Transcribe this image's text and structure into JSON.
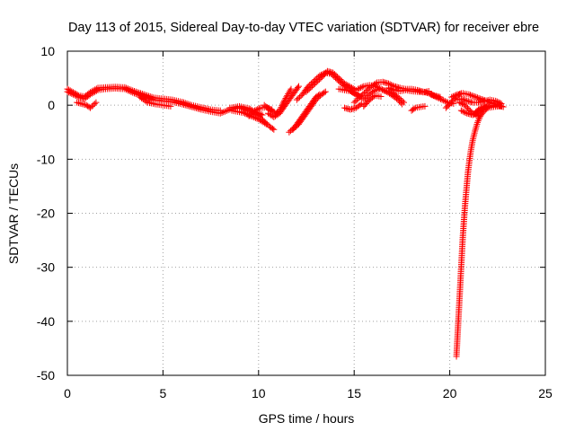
{
  "chart_data": {
    "type": "scatter",
    "title": "Day 113 of 2015, Sidereal Day-to-day VTEC variation (SDTVAR) for receiver ebre",
    "xlabel": "GPS time / hours",
    "ylabel": "SDTVAR / TECUs",
    "xlim": [
      0,
      25
    ],
    "ylim": [
      -50,
      10
    ],
    "xticks": [
      0,
      5,
      10,
      15,
      20,
      25
    ],
    "yticks": [
      -50,
      -40,
      -30,
      -20,
      -10,
      0,
      10
    ],
    "grid": true,
    "marker": "+",
    "color": "#ff0000",
    "series": [
      {
        "name": "SDTVAR",
        "segments": [
          [
            [
              0.0,
              2.5
            ],
            [
              0.3,
              2.0
            ],
            [
              0.6,
              1.5
            ],
            [
              0.9,
              1.2
            ],
            [
              1.2,
              2.0
            ],
            [
              1.6,
              2.8
            ],
            [
              2.0,
              3.0
            ],
            [
              2.5,
              3.1
            ],
            [
              3.0,
              3.0
            ],
            [
              3.5,
              2.2
            ],
            [
              4.0,
              1.6
            ],
            [
              4.5,
              1.0
            ],
            [
              5.0,
              0.8
            ],
            [
              5.5,
              0.6
            ],
            [
              6.0,
              0.2
            ],
            [
              6.5,
              -0.3
            ],
            [
              7.0,
              -0.8
            ],
            [
              7.5,
              -1.2
            ],
            [
              8.0,
              -1.5
            ],
            [
              8.5,
              -0.8
            ],
            [
              9.0,
              -0.5
            ],
            [
              9.5,
              -1.0
            ],
            [
              10.0,
              -2.0
            ],
            [
              10.3,
              -3.0
            ],
            [
              10.6,
              -4.0
            ],
            [
              10.8,
              -4.5
            ]
          ],
          [
            [
              0.0,
              3.0
            ],
            [
              0.3,
              2.4
            ],
            [
              0.6,
              1.8
            ],
            [
              0.9,
              1.6
            ],
            [
              1.2,
              2.4
            ],
            [
              1.6,
              3.2
            ],
            [
              2.0,
              3.3
            ],
            [
              2.5,
              3.4
            ],
            [
              3.0,
              3.3
            ],
            [
              3.5,
              2.6
            ],
            [
              4.0,
              2.0
            ],
            [
              4.5,
              1.4
            ],
            [
              5.0,
              1.2
            ],
            [
              5.5,
              1.0
            ],
            [
              6.0,
              0.6
            ],
            [
              6.5,
              0.0
            ],
            [
              7.0,
              -0.4
            ],
            [
              7.5,
              -0.8
            ],
            [
              8.0,
              -1.0
            ]
          ],
          [
            [
              0.5,
              0.5
            ],
            [
              1.0,
              0.0
            ],
            [
              1.2,
              -0.5
            ],
            [
              1.5,
              0.5
            ]
          ],
          [
            [
              3.8,
              1.5
            ],
            [
              4.2,
              0.5
            ],
            [
              4.6,
              0.2
            ],
            [
              5.0,
              0.0
            ],
            [
              5.4,
              -0.2
            ]
          ],
          [
            [
              8.5,
              -0.5
            ],
            [
              9.0,
              -0.2
            ],
            [
              9.5,
              -0.6
            ],
            [
              9.8,
              -1.2
            ],
            [
              10.2,
              -1.8
            ]
          ],
          [
            [
              8.6,
              -1.0
            ],
            [
              9.2,
              -1.4
            ],
            [
              9.6,
              -2.0
            ],
            [
              10.0,
              -2.6
            ],
            [
              10.4,
              -3.5
            ]
          ],
          [
            [
              9.5,
              -2.0
            ],
            [
              9.8,
              -1.0
            ],
            [
              10.1,
              -0.5
            ],
            [
              10.4,
              -0.4
            ],
            [
              10.7,
              -0.8
            ]
          ],
          [
            [
              10.3,
              0.0
            ],
            [
              10.6,
              -0.8
            ],
            [
              10.9,
              -1.5
            ],
            [
              11.1,
              -1.0
            ],
            [
              11.3,
              0.5
            ],
            [
              11.5,
              1.8
            ],
            [
              11.7,
              3.0
            ]
          ],
          [
            [
              10.5,
              -1.5
            ],
            [
              10.8,
              -2.2
            ],
            [
              11.1,
              -1.5
            ],
            [
              11.4,
              0.0
            ],
            [
              11.7,
              1.5
            ],
            [
              11.9,
              2.5
            ],
            [
              12.1,
              3.5
            ]
          ],
          [
            [
              11.6,
              -5.0
            ],
            [
              11.9,
              -4.0
            ],
            [
              12.2,
              -2.5
            ],
            [
              12.5,
              -1.0
            ],
            [
              12.8,
              0.5
            ],
            [
              13.0,
              1.5
            ],
            [
              13.2,
              2.0
            ]
          ],
          [
            [
              11.8,
              -4.5
            ],
            [
              12.1,
              -3.5
            ],
            [
              12.4,
              -2.0
            ],
            [
              12.7,
              -0.5
            ],
            [
              13.0,
              1.0
            ],
            [
              13.3,
              2.0
            ],
            [
              13.5,
              2.5
            ]
          ],
          [
            [
              12.0,
              1.0
            ],
            [
              12.3,
              2.0
            ],
            [
              12.6,
              3.5
            ],
            [
              12.9,
              4.5
            ],
            [
              13.2,
              5.5
            ],
            [
              13.5,
              6.0
            ],
            [
              13.8,
              5.8
            ],
            [
              14.1,
              4.8
            ],
            [
              14.4,
              3.8
            ],
            [
              14.7,
              3.0
            ],
            [
              15.0,
              2.2
            ],
            [
              15.3,
              1.6
            ]
          ],
          [
            [
              12.5,
              2.5
            ],
            [
              12.8,
              3.5
            ],
            [
              13.1,
              4.5
            ],
            [
              13.4,
              5.5
            ],
            [
              13.6,
              6.3
            ],
            [
              13.9,
              6.0
            ],
            [
              14.2,
              5.0
            ],
            [
              14.5,
              4.0
            ],
            [
              14.8,
              3.4
            ],
            [
              15.1,
              2.8
            ]
          ],
          [
            [
              14.2,
              3.0
            ],
            [
              14.5,
              2.8
            ],
            [
              14.8,
              2.6
            ],
            [
              15.1,
              2.0
            ],
            [
              15.4,
              1.5
            ]
          ],
          [
            [
              14.5,
              -0.5
            ],
            [
              14.8,
              -0.8
            ],
            [
              15.1,
              -0.5
            ],
            [
              15.4,
              0.3
            ]
          ],
          [
            [
              15.0,
              0.5
            ],
            [
              15.3,
              1.5
            ],
            [
              15.6,
              2.5
            ],
            [
              15.9,
              3.5
            ],
            [
              16.2,
              4.2
            ],
            [
              16.5,
              4.3
            ],
            [
              16.8,
              4.0
            ],
            [
              17.1,
              3.5
            ],
            [
              17.4,
              3.2
            ],
            [
              17.7,
              3.0
            ],
            [
              18.0,
              3.0
            ],
            [
              18.3,
              2.8
            ],
            [
              18.6,
              2.5
            ],
            [
              18.9,
              2.2
            ],
            [
              19.2,
              1.8
            ],
            [
              19.5,
              1.5
            ]
          ],
          [
            [
              15.2,
              3.0
            ],
            [
              15.5,
              3.5
            ],
            [
              15.8,
              3.7
            ],
            [
              16.1,
              3.5
            ],
            [
              16.4,
              3.0
            ],
            [
              16.7,
              2.5
            ],
            [
              17.0,
              2.2
            ],
            [
              17.3,
              1.5
            ],
            [
              17.6,
              0.5
            ]
          ],
          [
            [
              15.5,
              1.0
            ],
            [
              15.8,
              2.0
            ],
            [
              16.1,
              2.8
            ],
            [
              16.4,
              3.0
            ],
            [
              16.7,
              2.5
            ],
            [
              17.0,
              1.8
            ],
            [
              17.3,
              1.0
            ],
            [
              17.5,
              0.2
            ]
          ],
          [
            [
              15.5,
              -0.2
            ],
            [
              15.8,
              1.0
            ],
            [
              16.1,
              1.8
            ],
            [
              16.4,
              1.6
            ]
          ],
          [
            [
              16.8,
              3.2
            ],
            [
              17.1,
              2.8
            ],
            [
              17.4,
              2.6
            ],
            [
              17.7,
              2.8
            ],
            [
              18.0,
              2.6
            ],
            [
              18.3,
              2.5
            ],
            [
              18.6,
              2.4
            ],
            [
              18.9,
              2.6
            ]
          ],
          [
            [
              18.0,
              -1.0
            ],
            [
              18.2,
              -0.5
            ],
            [
              18.5,
              -0.3
            ],
            [
              18.7,
              -0.2
            ]
          ],
          [
            [
              19.0,
              2.0
            ],
            [
              19.3,
              1.5
            ],
            [
              19.6,
              1.0
            ],
            [
              19.9,
              0.5
            ],
            [
              20.2,
              0.3
            ]
          ],
          [
            [
              19.8,
              -0.5
            ],
            [
              20.0,
              0.2
            ],
            [
              20.2,
              1.0
            ],
            [
              20.4,
              1.8
            ],
            [
              20.6,
              2.2
            ]
          ],
          [
            [
              20.1,
              1.5
            ],
            [
              20.4,
              2.0
            ],
            [
              20.7,
              2.2
            ],
            [
              21.0,
              2.0
            ],
            [
              21.3,
              1.6
            ],
            [
              21.6,
              1.2
            ],
            [
              21.9,
              0.8
            ],
            [
              22.2,
              0.4
            ],
            [
              22.5,
              0.0
            ],
            [
              22.8,
              -0.3
            ]
          ],
          [
            [
              20.3,
              1.0
            ],
            [
              20.6,
              1.2
            ],
            [
              20.9,
              0.8
            ],
            [
              21.2,
              0.5
            ],
            [
              21.5,
              0.5
            ],
            [
              21.8,
              0.8
            ],
            [
              22.1,
              1.0
            ],
            [
              22.4,
              0.8
            ],
            [
              22.7,
              0.3
            ]
          ],
          [
            [
              20.5,
              0.5
            ],
            [
              20.8,
              0.0
            ],
            [
              21.0,
              -0.8
            ],
            [
              21.2,
              -1.5
            ],
            [
              21.5,
              -2.0
            ]
          ],
          [
            [
              20.6,
              -1.0
            ],
            [
              20.9,
              -1.5
            ],
            [
              21.2,
              -1.8
            ],
            [
              21.4,
              -1.5
            ],
            [
              21.6,
              -1.0
            ],
            [
              21.8,
              -0.5
            ],
            [
              22.0,
              -0.2
            ]
          ],
          [
            [
              21.3,
              -1.5
            ],
            [
              21.5,
              -0.8
            ],
            [
              21.7,
              -0.4
            ],
            [
              21.9,
              -0.2
            ],
            [
              22.1,
              -0.1
            ],
            [
              22.4,
              -0.1
            ],
            [
              22.7,
              -0.2
            ]
          ],
          [
            [
              20.35,
              -46.5
            ],
            [
              20.38,
              -44.5
            ],
            [
              20.41,
              -42.5
            ],
            [
              20.44,
              -40.5
            ],
            [
              20.47,
              -38.5
            ],
            [
              20.5,
              -36.5
            ],
            [
              20.53,
              -34.5
            ],
            [
              20.56,
              -32.5
            ],
            [
              20.59,
              -30.5
            ],
            [
              20.62,
              -28.5
            ],
            [
              20.65,
              -26.5
            ],
            [
              20.68,
              -24.5
            ],
            [
              20.72,
              -22.5
            ],
            [
              20.76,
              -20.5
            ],
            [
              20.8,
              -18.5
            ],
            [
              20.85,
              -16.5
            ],
            [
              20.9,
              -14.5
            ],
            [
              20.95,
              -12.5
            ],
            [
              21.02,
              -10.5
            ],
            [
              21.1,
              -8.5
            ],
            [
              21.2,
              -6.5
            ],
            [
              21.32,
              -4.8
            ],
            [
              21.45,
              -3.2
            ],
            [
              21.6,
              -2.0
            ],
            [
              21.8,
              -1.0
            ],
            [
              22.0,
              -0.5
            ],
            [
              22.3,
              -0.3
            ],
            [
              22.6,
              -0.2
            ]
          ]
        ]
      }
    ]
  }
}
